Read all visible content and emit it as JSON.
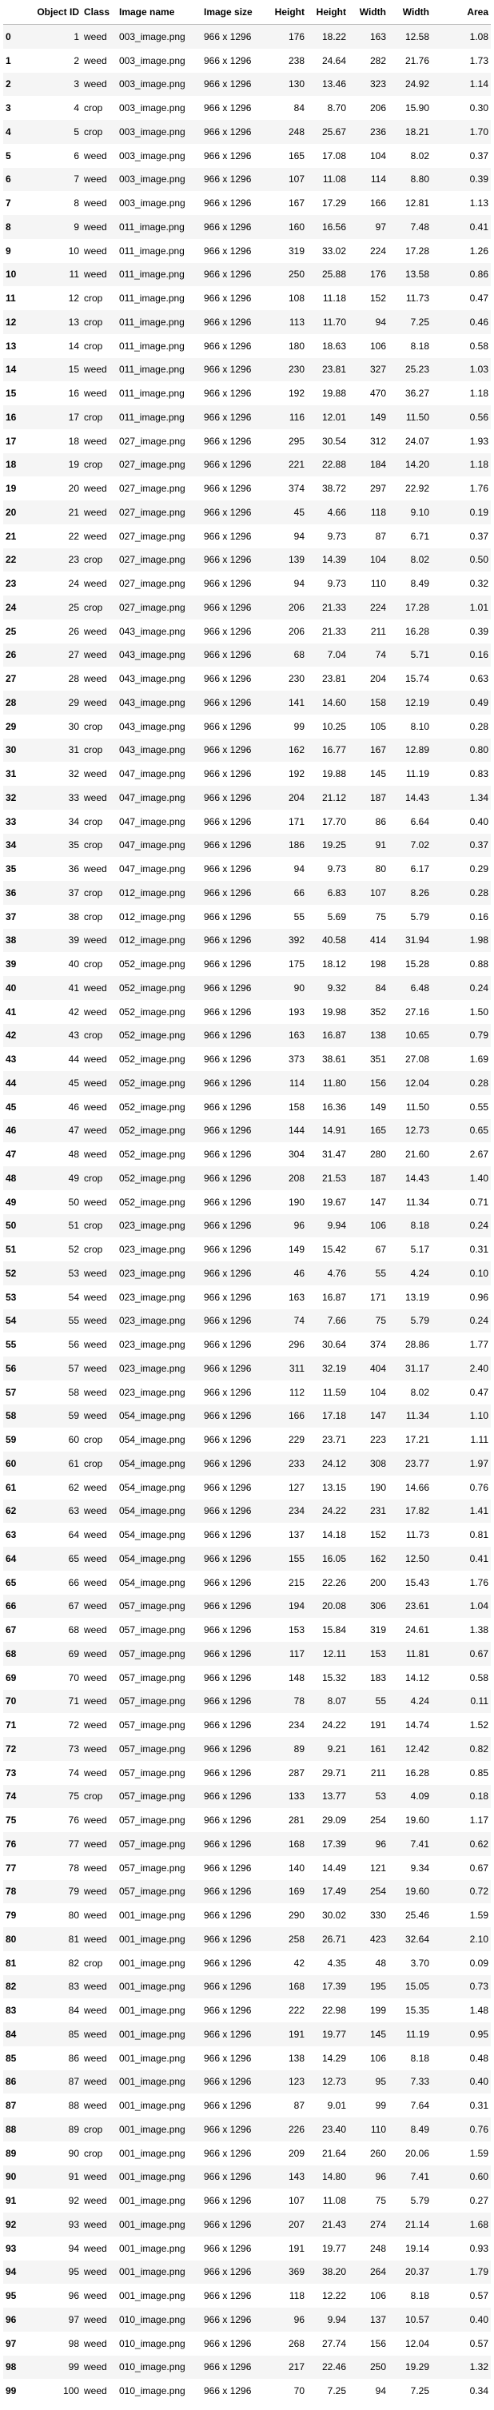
{
  "table": {
    "columns": [
      "",
      "Object ID",
      "Class",
      "Image name",
      "Image size",
      "Height",
      "Height",
      "Width",
      "Width",
      "Area"
    ],
    "rows": [
      [
        "0",
        "1",
        "weed",
        "003_image.png",
        "966 x 1296",
        "176",
        "18.22",
        "163",
        "12.58",
        "1.08"
      ],
      [
        "1",
        "2",
        "weed",
        "003_image.png",
        "966 x 1296",
        "238",
        "24.64",
        "282",
        "21.76",
        "1.73"
      ],
      [
        "2",
        "3",
        "weed",
        "003_image.png",
        "966 x 1296",
        "130",
        "13.46",
        "323",
        "24.92",
        "1.14"
      ],
      [
        "3",
        "4",
        "crop",
        "003_image.png",
        "966 x 1296",
        "84",
        "8.70",
        "206",
        "15.90",
        "0.30"
      ],
      [
        "4",
        "5",
        "crop",
        "003_image.png",
        "966 x 1296",
        "248",
        "25.67",
        "236",
        "18.21",
        "1.70"
      ],
      [
        "5",
        "6",
        "weed",
        "003_image.png",
        "966 x 1296",
        "165",
        "17.08",
        "104",
        "8.02",
        "0.37"
      ],
      [
        "6",
        "7",
        "weed",
        "003_image.png",
        "966 x 1296",
        "107",
        "11.08",
        "114",
        "8.80",
        "0.39"
      ],
      [
        "7",
        "8",
        "weed",
        "003_image.png",
        "966 x 1296",
        "167",
        "17.29",
        "166",
        "12.81",
        "1.13"
      ],
      [
        "8",
        "9",
        "weed",
        "011_image.png",
        "966 x 1296",
        "160",
        "16.56",
        "97",
        "7.48",
        "0.41"
      ],
      [
        "9",
        "10",
        "weed",
        "011_image.png",
        "966 x 1296",
        "319",
        "33.02",
        "224",
        "17.28",
        "1.26"
      ],
      [
        "10",
        "11",
        "weed",
        "011_image.png",
        "966 x 1296",
        "250",
        "25.88",
        "176",
        "13.58",
        "0.86"
      ],
      [
        "11",
        "12",
        "crop",
        "011_image.png",
        "966 x 1296",
        "108",
        "11.18",
        "152",
        "11.73",
        "0.47"
      ],
      [
        "12",
        "13",
        "crop",
        "011_image.png",
        "966 x 1296",
        "113",
        "11.70",
        "94",
        "7.25",
        "0.46"
      ],
      [
        "13",
        "14",
        "crop",
        "011_image.png",
        "966 x 1296",
        "180",
        "18.63",
        "106",
        "8.18",
        "0.58"
      ],
      [
        "14",
        "15",
        "weed",
        "011_image.png",
        "966 x 1296",
        "230",
        "23.81",
        "327",
        "25.23",
        "1.03"
      ],
      [
        "15",
        "16",
        "weed",
        "011_image.png",
        "966 x 1296",
        "192",
        "19.88",
        "470",
        "36.27",
        "1.18"
      ],
      [
        "16",
        "17",
        "crop",
        "011_image.png",
        "966 x 1296",
        "116",
        "12.01",
        "149",
        "11.50",
        "0.56"
      ],
      [
        "17",
        "18",
        "weed",
        "027_image.png",
        "966 x 1296",
        "295",
        "30.54",
        "312",
        "24.07",
        "1.93"
      ],
      [
        "18",
        "19",
        "crop",
        "027_image.png",
        "966 x 1296",
        "221",
        "22.88",
        "184",
        "14.20",
        "1.18"
      ],
      [
        "19",
        "20",
        "weed",
        "027_image.png",
        "966 x 1296",
        "374",
        "38.72",
        "297",
        "22.92",
        "1.76"
      ],
      [
        "20",
        "21",
        "weed",
        "027_image.png",
        "966 x 1296",
        "45",
        "4.66",
        "118",
        "9.10",
        "0.19"
      ],
      [
        "21",
        "22",
        "weed",
        "027_image.png",
        "966 x 1296",
        "94",
        "9.73",
        "87",
        "6.71",
        "0.37"
      ],
      [
        "22",
        "23",
        "crop",
        "027_image.png",
        "966 x 1296",
        "139",
        "14.39",
        "104",
        "8.02",
        "0.50"
      ],
      [
        "23",
        "24",
        "weed",
        "027_image.png",
        "966 x 1296",
        "94",
        "9.73",
        "110",
        "8.49",
        "0.32"
      ],
      [
        "24",
        "25",
        "crop",
        "027_image.png",
        "966 x 1296",
        "206",
        "21.33",
        "224",
        "17.28",
        "1.01"
      ],
      [
        "25",
        "26",
        "weed",
        "043_image.png",
        "966 x 1296",
        "206",
        "21.33",
        "211",
        "16.28",
        "0.39"
      ],
      [
        "26",
        "27",
        "weed",
        "043_image.png",
        "966 x 1296",
        "68",
        "7.04",
        "74",
        "5.71",
        "0.16"
      ],
      [
        "27",
        "28",
        "weed",
        "043_image.png",
        "966 x 1296",
        "230",
        "23.81",
        "204",
        "15.74",
        "0.63"
      ],
      [
        "28",
        "29",
        "weed",
        "043_image.png",
        "966 x 1296",
        "141",
        "14.60",
        "158",
        "12.19",
        "0.49"
      ],
      [
        "29",
        "30",
        "crop",
        "043_image.png",
        "966 x 1296",
        "99",
        "10.25",
        "105",
        "8.10",
        "0.28"
      ],
      [
        "30",
        "31",
        "crop",
        "043_image.png",
        "966 x 1296",
        "162",
        "16.77",
        "167",
        "12.89",
        "0.80"
      ],
      [
        "31",
        "32",
        "weed",
        "047_image.png",
        "966 x 1296",
        "192",
        "19.88",
        "145",
        "11.19",
        "0.83"
      ],
      [
        "32",
        "33",
        "weed",
        "047_image.png",
        "966 x 1296",
        "204",
        "21.12",
        "187",
        "14.43",
        "1.34"
      ],
      [
        "33",
        "34",
        "crop",
        "047_image.png",
        "966 x 1296",
        "171",
        "17.70",
        "86",
        "6.64",
        "0.40"
      ],
      [
        "34",
        "35",
        "crop",
        "047_image.png",
        "966 x 1296",
        "186",
        "19.25",
        "91",
        "7.02",
        "0.37"
      ],
      [
        "35",
        "36",
        "weed",
        "047_image.png",
        "966 x 1296",
        "94",
        "9.73",
        "80",
        "6.17",
        "0.29"
      ],
      [
        "36",
        "37",
        "crop",
        "012_image.png",
        "966 x 1296",
        "66",
        "6.83",
        "107",
        "8.26",
        "0.28"
      ],
      [
        "37",
        "38",
        "crop",
        "012_image.png",
        "966 x 1296",
        "55",
        "5.69",
        "75",
        "5.79",
        "0.16"
      ],
      [
        "38",
        "39",
        "weed",
        "012_image.png",
        "966 x 1296",
        "392",
        "40.58",
        "414",
        "31.94",
        "1.98"
      ],
      [
        "39",
        "40",
        "crop",
        "052_image.png",
        "966 x 1296",
        "175",
        "18.12",
        "198",
        "15.28",
        "0.88"
      ],
      [
        "40",
        "41",
        "weed",
        "052_image.png",
        "966 x 1296",
        "90",
        "9.32",
        "84",
        "6.48",
        "0.24"
      ],
      [
        "41",
        "42",
        "weed",
        "052_image.png",
        "966 x 1296",
        "193",
        "19.98",
        "352",
        "27.16",
        "1.50"
      ],
      [
        "42",
        "43",
        "crop",
        "052_image.png",
        "966 x 1296",
        "163",
        "16.87",
        "138",
        "10.65",
        "0.79"
      ],
      [
        "43",
        "44",
        "weed",
        "052_image.png",
        "966 x 1296",
        "373",
        "38.61",
        "351",
        "27.08",
        "1.69"
      ],
      [
        "44",
        "45",
        "weed",
        "052_image.png",
        "966 x 1296",
        "114",
        "11.80",
        "156",
        "12.04",
        "0.28"
      ],
      [
        "45",
        "46",
        "weed",
        "052_image.png",
        "966 x 1296",
        "158",
        "16.36",
        "149",
        "11.50",
        "0.55"
      ],
      [
        "46",
        "47",
        "weed",
        "052_image.png",
        "966 x 1296",
        "144",
        "14.91",
        "165",
        "12.73",
        "0.65"
      ],
      [
        "47",
        "48",
        "weed",
        "052_image.png",
        "966 x 1296",
        "304",
        "31.47",
        "280",
        "21.60",
        "2.67"
      ],
      [
        "48",
        "49",
        "crop",
        "052_image.png",
        "966 x 1296",
        "208",
        "21.53",
        "187",
        "14.43",
        "1.40"
      ],
      [
        "49",
        "50",
        "weed",
        "052_image.png",
        "966 x 1296",
        "190",
        "19.67",
        "147",
        "11.34",
        "0.71"
      ],
      [
        "50",
        "51",
        "crop",
        "023_image.png",
        "966 x 1296",
        "96",
        "9.94",
        "106",
        "8.18",
        "0.24"
      ],
      [
        "51",
        "52",
        "crop",
        "023_image.png",
        "966 x 1296",
        "149",
        "15.42",
        "67",
        "5.17",
        "0.31"
      ],
      [
        "52",
        "53",
        "weed",
        "023_image.png",
        "966 x 1296",
        "46",
        "4.76",
        "55",
        "4.24",
        "0.10"
      ],
      [
        "53",
        "54",
        "weed",
        "023_image.png",
        "966 x 1296",
        "163",
        "16.87",
        "171",
        "13.19",
        "0.96"
      ],
      [
        "54",
        "55",
        "weed",
        "023_image.png",
        "966 x 1296",
        "74",
        "7.66",
        "75",
        "5.79",
        "0.24"
      ],
      [
        "55",
        "56",
        "weed",
        "023_image.png",
        "966 x 1296",
        "296",
        "30.64",
        "374",
        "28.86",
        "1.77"
      ],
      [
        "56",
        "57",
        "weed",
        "023_image.png",
        "966 x 1296",
        "311",
        "32.19",
        "404",
        "31.17",
        "2.40"
      ],
      [
        "57",
        "58",
        "weed",
        "023_image.png",
        "966 x 1296",
        "112",
        "11.59",
        "104",
        "8.02",
        "0.47"
      ],
      [
        "58",
        "59",
        "weed",
        "054_image.png",
        "966 x 1296",
        "166",
        "17.18",
        "147",
        "11.34",
        "1.10"
      ],
      [
        "59",
        "60",
        "crop",
        "054_image.png",
        "966 x 1296",
        "229",
        "23.71",
        "223",
        "17.21",
        "1.11"
      ],
      [
        "60",
        "61",
        "crop",
        "054_image.png",
        "966 x 1296",
        "233",
        "24.12",
        "308",
        "23.77",
        "1.97"
      ],
      [
        "61",
        "62",
        "weed",
        "054_image.png",
        "966 x 1296",
        "127",
        "13.15",
        "190",
        "14.66",
        "0.76"
      ],
      [
        "62",
        "63",
        "weed",
        "054_image.png",
        "966 x 1296",
        "234",
        "24.22",
        "231",
        "17.82",
        "1.41"
      ],
      [
        "63",
        "64",
        "weed",
        "054_image.png",
        "966 x 1296",
        "137",
        "14.18",
        "152",
        "11.73",
        "0.81"
      ],
      [
        "64",
        "65",
        "weed",
        "054_image.png",
        "966 x 1296",
        "155",
        "16.05",
        "162",
        "12.50",
        "0.41"
      ],
      [
        "65",
        "66",
        "weed",
        "054_image.png",
        "966 x 1296",
        "215",
        "22.26",
        "200",
        "15.43",
        "1.76"
      ],
      [
        "66",
        "67",
        "weed",
        "057_image.png",
        "966 x 1296",
        "194",
        "20.08",
        "306",
        "23.61",
        "1.04"
      ],
      [
        "67",
        "68",
        "weed",
        "057_image.png",
        "966 x 1296",
        "153",
        "15.84",
        "319",
        "24.61",
        "1.38"
      ],
      [
        "68",
        "69",
        "weed",
        "057_image.png",
        "966 x 1296",
        "117",
        "12.11",
        "153",
        "11.81",
        "0.67"
      ],
      [
        "69",
        "70",
        "weed",
        "057_image.png",
        "966 x 1296",
        "148",
        "15.32",
        "183",
        "14.12",
        "0.58"
      ],
      [
        "70",
        "71",
        "weed",
        "057_image.png",
        "966 x 1296",
        "78",
        "8.07",
        "55",
        "4.24",
        "0.11"
      ],
      [
        "71",
        "72",
        "weed",
        "057_image.png",
        "966 x 1296",
        "234",
        "24.22",
        "191",
        "14.74",
        "1.52"
      ],
      [
        "72",
        "73",
        "weed",
        "057_image.png",
        "966 x 1296",
        "89",
        "9.21",
        "161",
        "12.42",
        "0.82"
      ],
      [
        "73",
        "74",
        "weed",
        "057_image.png",
        "966 x 1296",
        "287",
        "29.71",
        "211",
        "16.28",
        "0.85"
      ],
      [
        "74",
        "75",
        "crop",
        "057_image.png",
        "966 x 1296",
        "133",
        "13.77",
        "53",
        "4.09",
        "0.18"
      ],
      [
        "75",
        "76",
        "weed",
        "057_image.png",
        "966 x 1296",
        "281",
        "29.09",
        "254",
        "19.60",
        "1.17"
      ],
      [
        "76",
        "77",
        "weed",
        "057_image.png",
        "966 x 1296",
        "168",
        "17.39",
        "96",
        "7.41",
        "0.62"
      ],
      [
        "77",
        "78",
        "weed",
        "057_image.png",
        "966 x 1296",
        "140",
        "14.49",
        "121",
        "9.34",
        "0.67"
      ],
      [
        "78",
        "79",
        "weed",
        "057_image.png",
        "966 x 1296",
        "169",
        "17.49",
        "254",
        "19.60",
        "0.72"
      ],
      [
        "79",
        "80",
        "weed",
        "001_image.png",
        "966 x 1296",
        "290",
        "30.02",
        "330",
        "25.46",
        "1.59"
      ],
      [
        "80",
        "81",
        "weed",
        "001_image.png",
        "966 x 1296",
        "258",
        "26.71",
        "423",
        "32.64",
        "2.10"
      ],
      [
        "81",
        "82",
        "crop",
        "001_image.png",
        "966 x 1296",
        "42",
        "4.35",
        "48",
        "3.70",
        "0.09"
      ],
      [
        "82",
        "83",
        "weed",
        "001_image.png",
        "966 x 1296",
        "168",
        "17.39",
        "195",
        "15.05",
        "0.73"
      ],
      [
        "83",
        "84",
        "weed",
        "001_image.png",
        "966 x 1296",
        "222",
        "22.98",
        "199",
        "15.35",
        "1.48"
      ],
      [
        "84",
        "85",
        "weed",
        "001_image.png",
        "966 x 1296",
        "191",
        "19.77",
        "145",
        "11.19",
        "0.95"
      ],
      [
        "85",
        "86",
        "weed",
        "001_image.png",
        "966 x 1296",
        "138",
        "14.29",
        "106",
        "8.18",
        "0.48"
      ],
      [
        "86",
        "87",
        "weed",
        "001_image.png",
        "966 x 1296",
        "123",
        "12.73",
        "95",
        "7.33",
        "0.40"
      ],
      [
        "87",
        "88",
        "weed",
        "001_image.png",
        "966 x 1296",
        "87",
        "9.01",
        "99",
        "7.64",
        "0.31"
      ],
      [
        "88",
        "89",
        "crop",
        "001_image.png",
        "966 x 1296",
        "226",
        "23.40",
        "110",
        "8.49",
        "0.76"
      ],
      [
        "89",
        "90",
        "crop",
        "001_image.png",
        "966 x 1296",
        "209",
        "21.64",
        "260",
        "20.06",
        "1.59"
      ],
      [
        "90",
        "91",
        "weed",
        "001_image.png",
        "966 x 1296",
        "143",
        "14.80",
        "96",
        "7.41",
        "0.60"
      ],
      [
        "91",
        "92",
        "weed",
        "001_image.png",
        "966 x 1296",
        "107",
        "11.08",
        "75",
        "5.79",
        "0.27"
      ],
      [
        "92",
        "93",
        "weed",
        "001_image.png",
        "966 x 1296",
        "207",
        "21.43",
        "274",
        "21.14",
        "1.68"
      ],
      [
        "93",
        "94",
        "weed",
        "001_image.png",
        "966 x 1296",
        "191",
        "19.77",
        "248",
        "19.14",
        "0.93"
      ],
      [
        "94",
        "95",
        "weed",
        "001_image.png",
        "966 x 1296",
        "369",
        "38.20",
        "264",
        "20.37",
        "1.79"
      ],
      [
        "95",
        "96",
        "weed",
        "001_image.png",
        "966 x 1296",
        "118",
        "12.22",
        "106",
        "8.18",
        "0.57"
      ],
      [
        "96",
        "97",
        "weed",
        "010_image.png",
        "966 x 1296",
        "96",
        "9.94",
        "137",
        "10.57",
        "0.40"
      ],
      [
        "97",
        "98",
        "weed",
        "010_image.png",
        "966 x 1296",
        "268",
        "27.74",
        "156",
        "12.04",
        "0.57"
      ],
      [
        "98",
        "99",
        "weed",
        "010_image.png",
        "966 x 1296",
        "217",
        "22.46",
        "250",
        "19.29",
        "1.32"
      ],
      [
        "99",
        "100",
        "weed",
        "010_image.png",
        "966 x 1296",
        "70",
        "7.25",
        "94",
        "7.25",
        "0.34"
      ]
    ]
  }
}
